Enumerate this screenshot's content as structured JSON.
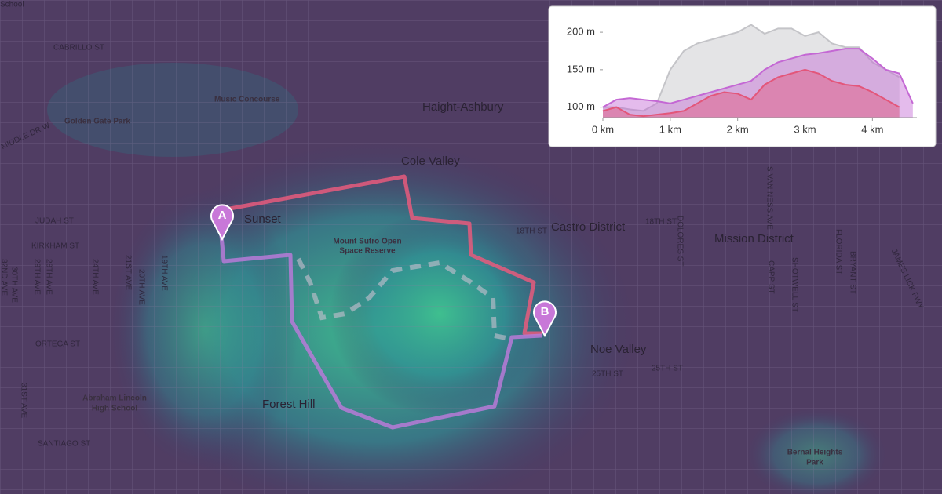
{
  "map": {
    "labels": [
      "School",
      "CABRILLO ST",
      "Music Concourse",
      "Golden Gate Park",
      "MIDDLE DR W",
      "Haight-Ashbury",
      "Cole Valley",
      "Sunset",
      "JUDAH ST",
      "KIRKHAM ST",
      "Mount Sutro Open",
      "Space Reserve",
      "18TH ST",
      "Castro District",
      "18TH ST",
      "DOLORES ST",
      "Mission District",
      "S VAN NESS AVE",
      "FLORIDA ST",
      "BRYANT ST",
      "JAMES LICK FWY",
      "Noe Valley",
      "25TH ST",
      "25TH ST",
      "ORTEGA ST",
      "Abraham Lincoln",
      "High School",
      "SANTIAGO ST",
      "Forest Hill",
      "Bernal Heights",
      "Park",
      "24TH AVE",
      "21ST AVE",
      "20TH AVE",
      "19TH AVE",
      "28TH AVE",
      "29TH AVE",
      "30TH AVE",
      "31ST AVE",
      "32ND AVE",
      "CAPP ST",
      "SHOTWELL ST"
    ],
    "markers": [
      "A",
      "B"
    ]
  },
  "chart_data": {
    "type": "area",
    "x": [
      0,
      0.2,
      0.4,
      0.6,
      0.8,
      1,
      1.2,
      1.4,
      1.6,
      1.8,
      2,
      2.2,
      2.4,
      2.6,
      2.8,
      3,
      3.2,
      3.4,
      3.6,
      3.8,
      4,
      4.2,
      4.4,
      4.6
    ],
    "series": [
      {
        "color": "#c4c4c8",
        "values": [
          100,
          100,
          97,
          95,
          105,
          150,
          175,
          185,
          190,
          195,
          200,
          210,
          198,
          205,
          205,
          195,
          200,
          185,
          180,
          180,
          160,
          150,
          140,
          null
        ]
      },
      {
        "color": "#c468d4",
        "values": [
          100,
          110,
          112,
          110,
          108,
          105,
          110,
          115,
          120,
          125,
          130,
          135,
          150,
          160,
          165,
          170,
          172,
          175,
          178,
          178,
          165,
          150,
          145,
          105
        ]
      },
      {
        "color": "#e3567a",
        "values": [
          95,
          100,
          90,
          88,
          90,
          92,
          95,
          105,
          115,
          120,
          118,
          110,
          130,
          140,
          145,
          150,
          145,
          135,
          130,
          128,
          120,
          110,
          100,
          null
        ]
      }
    ],
    "xlim": [
      0,
      4.66
    ],
    "ylim": [
      86,
      220
    ],
    "xticks": [
      {
        "value": 0,
        "label": "0 km"
      },
      {
        "value": 1,
        "label": "1 km"
      },
      {
        "value": 2,
        "label": "2 km"
      },
      {
        "value": 3,
        "label": "3 km"
      },
      {
        "value": 4,
        "label": "4 km"
      }
    ],
    "yticks": [
      {
        "value": 100,
        "label": "100 m"
      },
      {
        "value": 150,
        "label": "150 m"
      },
      {
        "value": 200,
        "label": "200 m"
      }
    ]
  }
}
